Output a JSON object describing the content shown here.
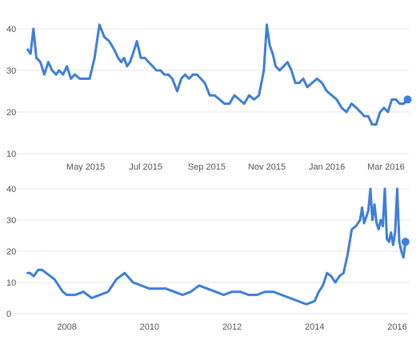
{
  "colors": {
    "series": "#3d7fd9",
    "grid": "#e6e6e6",
    "text": "#555555"
  },
  "chart_data": [
    {
      "type": "line",
      "title": "",
      "xlabel": "",
      "ylabel": "",
      "ylim": [
        10,
        40
      ],
      "yticks": [
        10,
        20,
        30,
        40
      ],
      "xlim": [
        "2015-03-01",
        "2016-03-25"
      ],
      "xticks": [
        {
          "x": "2015-05-01",
          "label": "May 2015"
        },
        {
          "x": "2015-07-01",
          "label": "Jul 2015"
        },
        {
          "x": "2015-09-01",
          "label": "Sep 2015"
        },
        {
          "x": "2015-11-01",
          "label": "Nov 2015"
        },
        {
          "x": "2016-01-01",
          "label": "Jan 2016"
        },
        {
          "x": "2016-03-01",
          "label": "Mar 2016"
        }
      ],
      "grid": true,
      "end_marker": true,
      "series": [
        {
          "x": [
            "2015-03-03",
            "2015-03-06",
            "2015-03-09",
            "2015-03-12",
            "2015-03-16",
            "2015-03-20",
            "2015-03-24",
            "2015-03-28",
            "2015-04-01",
            "2015-04-04",
            "2015-04-08",
            "2015-04-12",
            "2015-04-16",
            "2015-04-20",
            "2015-04-25",
            "2015-04-30",
            "2015-05-05",
            "2015-05-10",
            "2015-05-15",
            "2015-05-20",
            "2015-05-25",
            "2015-05-30",
            "2015-06-03",
            "2015-06-06",
            "2015-06-09",
            "2015-06-12",
            "2015-06-15",
            "2015-06-18",
            "2015-06-22",
            "2015-06-26",
            "2015-06-30",
            "2015-07-04",
            "2015-07-08",
            "2015-07-12",
            "2015-07-16",
            "2015-07-20",
            "2015-07-24",
            "2015-07-28",
            "2015-08-02",
            "2015-08-06",
            "2015-08-10",
            "2015-08-14",
            "2015-08-18",
            "2015-08-22",
            "2015-08-26",
            "2015-08-30",
            "2015-09-04",
            "2015-09-09",
            "2015-09-14",
            "2015-09-19",
            "2015-09-24",
            "2015-09-29",
            "2015-10-04",
            "2015-10-09",
            "2015-10-14",
            "2015-10-19",
            "2015-10-24",
            "2015-10-29",
            "2015-11-01",
            "2015-11-04",
            "2015-11-07",
            "2015-11-10",
            "2015-11-14",
            "2015-11-18",
            "2015-11-22",
            "2015-11-26",
            "2015-11-30",
            "2015-12-04",
            "2015-12-08",
            "2015-12-12",
            "2015-12-17",
            "2015-12-22",
            "2015-12-27",
            "2016-01-01",
            "2016-01-06",
            "2016-01-11",
            "2016-01-16",
            "2016-01-21",
            "2016-01-26",
            "2016-01-31",
            "2016-02-04",
            "2016-02-08",
            "2016-02-12",
            "2016-02-16",
            "2016-02-20",
            "2016-02-24",
            "2016-02-28",
            "2016-03-03",
            "2016-03-07",
            "2016-03-11",
            "2016-03-15",
            "2016-03-19",
            "2016-03-23"
          ],
          "y": [
            35,
            34,
            40,
            33,
            32,
            29,
            32,
            30,
            29,
            30,
            29,
            31,
            28,
            29,
            28,
            28,
            28,
            33,
            41,
            38,
            37,
            35,
            33,
            32,
            33,
            31,
            32,
            34,
            37,
            33,
            33,
            32,
            31,
            30,
            30,
            29,
            29,
            28,
            25,
            28,
            29,
            28,
            29,
            29,
            28,
            27,
            24,
            24,
            23,
            22,
            22,
            24,
            23,
            22,
            24,
            23,
            24,
            30,
            41,
            36,
            34,
            31,
            30,
            31,
            32,
            30,
            27,
            27,
            28,
            26,
            27,
            28,
            27,
            25,
            24,
            23,
            21,
            20,
            22,
            21,
            20,
            19,
            19,
            17,
            17,
            20,
            21,
            20,
            23,
            23,
            22,
            22,
            23
          ]
        }
      ]
    },
    {
      "type": "line",
      "title": "",
      "xlabel": "",
      "ylabel": "",
      "ylim": [
        0,
        40
      ],
      "yticks": [
        0,
        10,
        20,
        30,
        40
      ],
      "xlim": [
        2007.0,
        2016.3
      ],
      "xticks": [
        {
          "x": 2008,
          "label": "2008"
        },
        {
          "x": 2010,
          "label": "2010"
        },
        {
          "x": 2012,
          "label": "2012"
        },
        {
          "x": 2014,
          "label": "2014"
        },
        {
          "x": 2016,
          "label": "2016"
        }
      ],
      "grid": true,
      "end_marker": true,
      "series": [
        {
          "x": [
            2007.05,
            2007.1,
            2007.2,
            2007.3,
            2007.4,
            2007.5,
            2007.6,
            2007.7,
            2007.8,
            2007.9,
            2008.0,
            2008.2,
            2008.4,
            2008.6,
            2008.8,
            2009.0,
            2009.2,
            2009.4,
            2009.6,
            2009.8,
            2010.0,
            2010.2,
            2010.4,
            2010.6,
            2010.8,
            2011.0,
            2011.2,
            2011.4,
            2011.6,
            2011.8,
            2012.0,
            2012.2,
            2012.4,
            2012.6,
            2012.8,
            2013.0,
            2013.2,
            2013.4,
            2013.6,
            2013.8,
            2014.0,
            2014.1,
            2014.2,
            2014.3,
            2014.4,
            2014.5,
            2014.6,
            2014.7,
            2014.8,
            2014.9,
            2015.0,
            2015.1,
            2015.15,
            2015.2,
            2015.25,
            2015.3,
            2015.35,
            2015.4,
            2015.45,
            2015.5,
            2015.55,
            2015.6,
            2015.65,
            2015.7,
            2015.75,
            2015.8,
            2015.85,
            2015.9,
            2015.95,
            2016.0,
            2016.05,
            2016.1,
            2016.15,
            2016.2
          ],
          "y": [
            13,
            13,
            12,
            14,
            14,
            13,
            12,
            11,
            9,
            7,
            6,
            6,
            7,
            5,
            6,
            7,
            11,
            13,
            10,
            9,
            8,
            8,
            8,
            7,
            6,
            7,
            9,
            8,
            7,
            6,
            7,
            7,
            6,
            6,
            7,
            7,
            6,
            5,
            4,
            3,
            4,
            7,
            9,
            13,
            12,
            10,
            12,
            13,
            19,
            27,
            28,
            30,
            34,
            29,
            31,
            33,
            40,
            30,
            35,
            29,
            27,
            30,
            28,
            40,
            24,
            23,
            26,
            22,
            26,
            40,
            23,
            20,
            18,
            23
          ]
        }
      ]
    }
  ]
}
